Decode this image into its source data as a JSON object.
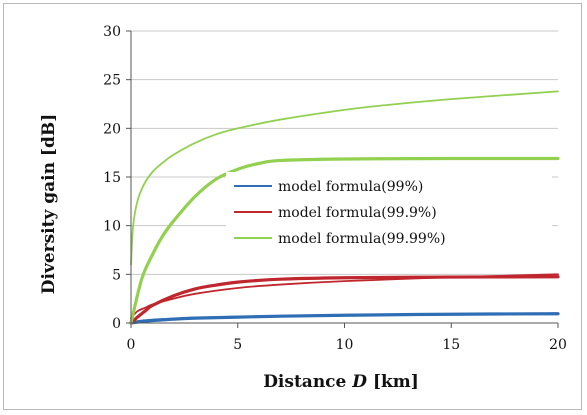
{
  "chart_data": {
    "type": "line",
    "xlabel": "Distance D [km]",
    "xlabel_parts": {
      "before": "Distance ",
      "var": "D",
      "after": " [km]"
    },
    "ylabel": "Diversity gain [dB]",
    "xlim": [
      0,
      20
    ],
    "ylim": [
      0,
      30
    ],
    "xticks": [
      0,
      5,
      10,
      15,
      20
    ],
    "yticks": [
      0,
      5,
      10,
      15,
      20,
      25,
      30
    ],
    "grid": "horizontal",
    "legend_position": "center-right",
    "series": [
      {
        "name": "model formula(99%)",
        "color": "#2f6eb5",
        "model": {
          "x": [
            0,
            0.5,
            1,
            2,
            3,
            5,
            7,
            10,
            15,
            20
          ],
          "y": [
            0.1,
            0.25,
            0.35,
            0.45,
            0.55,
            0.65,
            0.72,
            0.8,
            0.9,
            1.0
          ]
        },
        "measured": {
          "x": [
            0,
            0.5,
            1,
            2,
            3,
            5,
            7,
            10,
            15,
            20
          ],
          "y": [
            0,
            0.15,
            0.25,
            0.4,
            0.5,
            0.6,
            0.7,
            0.8,
            0.9,
            0.95
          ]
        }
      },
      {
        "name": "model formula(99.9%)",
        "color": "#c0262d",
        "model": {
          "x": [
            0,
            0.3,
            0.7,
            1,
            2,
            3,
            5,
            7,
            10,
            15,
            20
          ],
          "y": [
            0.5,
            1.2,
            1.6,
            1.9,
            2.5,
            3.0,
            3.6,
            3.95,
            4.3,
            4.7,
            5.0
          ]
        },
        "measured": {
          "x": [
            0,
            0.3,
            0.7,
            1,
            2,
            3,
            4,
            5,
            7,
            10,
            15,
            20
          ],
          "y": [
            0,
            0.6,
            1.3,
            1.8,
            2.8,
            3.5,
            3.9,
            4.2,
            4.5,
            4.65,
            4.72,
            4.75
          ]
        }
      },
      {
        "name": "model formula(99.99%)",
        "color": "#92d050",
        "model": {
          "x": [
            0,
            0.1,
            0.3,
            0.6,
            1,
            1.5,
            2,
            3,
            4,
            5,
            7,
            10,
            12,
            15,
            20
          ],
          "y": [
            6,
            10,
            12.5,
            14.2,
            15.5,
            16.5,
            17.3,
            18.5,
            19.4,
            20.0,
            20.9,
            21.9,
            22.4,
            23.0,
            23.8
          ]
        },
        "measured": {
          "x": [
            0,
            0.5,
            1,
            1.5,
            2,
            3,
            4,
            5,
            6,
            7,
            10,
            15,
            20
          ],
          "y": [
            0,
            4.5,
            7.0,
            9.0,
            10.5,
            13.0,
            14.8,
            15.8,
            16.4,
            16.7,
            16.85,
            16.9,
            16.9
          ]
        }
      }
    ]
  }
}
